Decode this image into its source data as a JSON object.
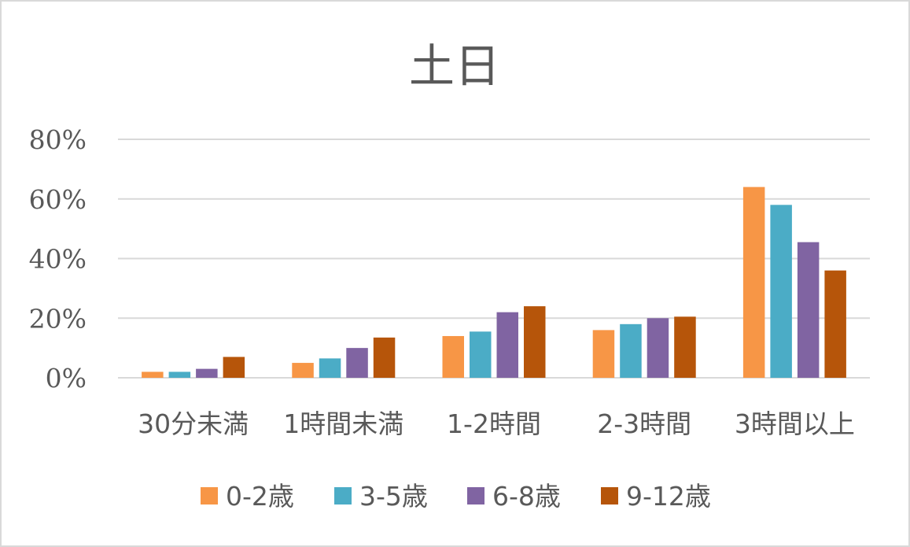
{
  "chart_data": {
    "type": "bar",
    "title": "土日",
    "categories": [
      "30分未満",
      "1時間未満",
      "1-2時間",
      "2-3時間",
      "3時間以上"
    ],
    "series": [
      {
        "name": "0-2歳",
        "color": "#F79646",
        "values": [
          2,
          5,
          14,
          16,
          64
        ]
      },
      {
        "name": "3-5歳",
        "color": "#4BACC6",
        "values": [
          2,
          6.5,
          15.5,
          18,
          58
        ]
      },
      {
        "name": "6-8歳",
        "color": "#8064A2",
        "values": [
          3,
          10,
          22,
          20,
          45.5
        ]
      },
      {
        "name": "9-12歳",
        "color": "#B6550A",
        "values": [
          7,
          13.5,
          24,
          20.5,
          36
        ]
      }
    ],
    "ylim": [
      0,
      80
    ],
    "yticks": [
      "0%",
      "20%",
      "40%",
      "60%",
      "80%"
    ],
    "ytick_values": [
      0,
      20,
      40,
      60,
      80
    ],
    "xlabel": "",
    "ylabel": "",
    "grid": true,
    "legend_position": "bottom"
  }
}
